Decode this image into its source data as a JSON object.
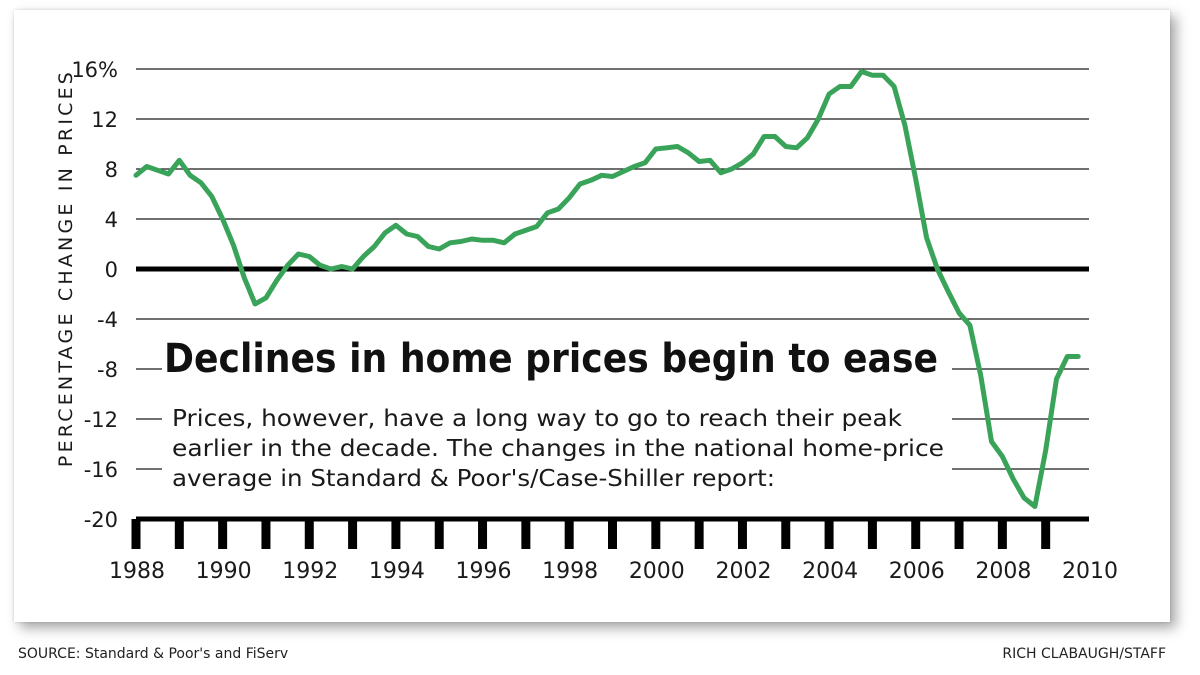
{
  "chart_data": {
    "type": "line",
    "title": "Declines in home prices begin to ease",
    "subtitle_lines": [
      "Prices, however, have a long way to go to reach their peak",
      "earlier in the decade. The changes in the national home-price",
      "average in Standard & Poor's/Case-Shiller report:"
    ],
    "xlabel": "",
    "ylabel": "PERCENTAGE CHANGE IN PRICES",
    "xlim": [
      1988,
      2010
    ],
    "ylim": [
      -20,
      16
    ],
    "y_ticks": [
      16,
      12,
      8,
      4,
      0,
      -4,
      -8,
      -12,
      -16,
      -20
    ],
    "y_tick_labels": [
      "16%",
      "12",
      "8",
      "4",
      "0",
      "-4",
      "-8",
      "-12",
      "-16",
      "-20"
    ],
    "x_tick_labels": [
      "1988",
      "1990",
      "1992",
      "1994",
      "1996",
      "1998",
      "2000",
      "2002",
      "2004",
      "2006",
      "2008",
      "2010"
    ],
    "x_tick_values": [
      1988,
      1990,
      1992,
      1994,
      1996,
      1998,
      2000,
      2002,
      2004,
      2006,
      2008,
      2010
    ],
    "grid": true,
    "series": [
      {
        "name": "Percentage change in prices",
        "color": "#3aa35a",
        "x": [
          1988.0,
          1988.25,
          1988.5,
          1988.75,
          1989.0,
          1989.25,
          1989.5,
          1989.75,
          1990.0,
          1990.25,
          1990.5,
          1990.75,
          1991.0,
          1991.25,
          1991.5,
          1991.75,
          1992.0,
          1992.25,
          1992.5,
          1992.75,
          1993.0,
          1993.25,
          1993.5,
          1993.75,
          1994.0,
          1994.25,
          1994.5,
          1994.75,
          1995.0,
          1995.25,
          1995.5,
          1995.75,
          1996.0,
          1996.25,
          1996.5,
          1996.75,
          1997.0,
          1997.25,
          1997.5,
          1997.75,
          1998.0,
          1998.25,
          1998.5,
          1998.75,
          1999.0,
          1999.25,
          1999.5,
          1999.75,
          2000.0,
          2000.25,
          2000.5,
          2000.75,
          2001.0,
          2001.25,
          2001.5,
          2001.75,
          2002.0,
          2002.25,
          2002.5,
          2002.75,
          2003.0,
          2003.25,
          2003.5,
          2003.75,
          2004.0,
          2004.25,
          2004.5,
          2004.75,
          2005.0,
          2005.25,
          2005.5,
          2005.75,
          2006.0,
          2006.25,
          2006.5,
          2006.75,
          2007.0,
          2007.25,
          2007.5,
          2007.75,
          2008.0,
          2008.25,
          2008.5,
          2008.75,
          2009.0,
          2009.25,
          2009.5,
          2009.75
        ],
        "values": [
          7.5,
          8.2,
          7.9,
          7.6,
          8.7,
          7.5,
          6.9,
          5.8,
          4.0,
          1.9,
          -0.7,
          -2.8,
          -2.3,
          -0.9,
          0.3,
          1.2,
          1.0,
          0.3,
          0.0,
          0.2,
          0.0,
          1.0,
          1.8,
          2.9,
          3.5,
          2.8,
          2.6,
          1.8,
          1.6,
          2.1,
          2.2,
          2.4,
          2.3,
          2.3,
          2.1,
          2.8,
          3.1,
          3.4,
          4.5,
          4.8,
          5.7,
          6.8,
          7.1,
          7.5,
          7.4,
          7.8,
          8.2,
          8.5,
          9.6,
          9.7,
          9.8,
          9.3,
          8.6,
          8.7,
          7.7,
          8.0,
          8.5,
          9.2,
          10.6,
          10.6,
          9.8,
          9.7,
          10.5,
          12.0,
          14.0,
          14.6,
          14.6,
          15.8,
          15.5,
          15.5,
          14.6,
          11.5,
          7.2,
          2.5,
          0.0,
          -1.8,
          -3.5,
          -4.5,
          -8.5,
          -13.8,
          -15.0,
          -16.8,
          -18.3,
          -19.0,
          -14.5,
          -8.8,
          -7.0,
          -7.0
        ]
      }
    ]
  },
  "footer": {
    "source": "SOURCE: Standard & Poor's and FiServ",
    "credit": "RICH CLABAUGH/STAFF"
  }
}
